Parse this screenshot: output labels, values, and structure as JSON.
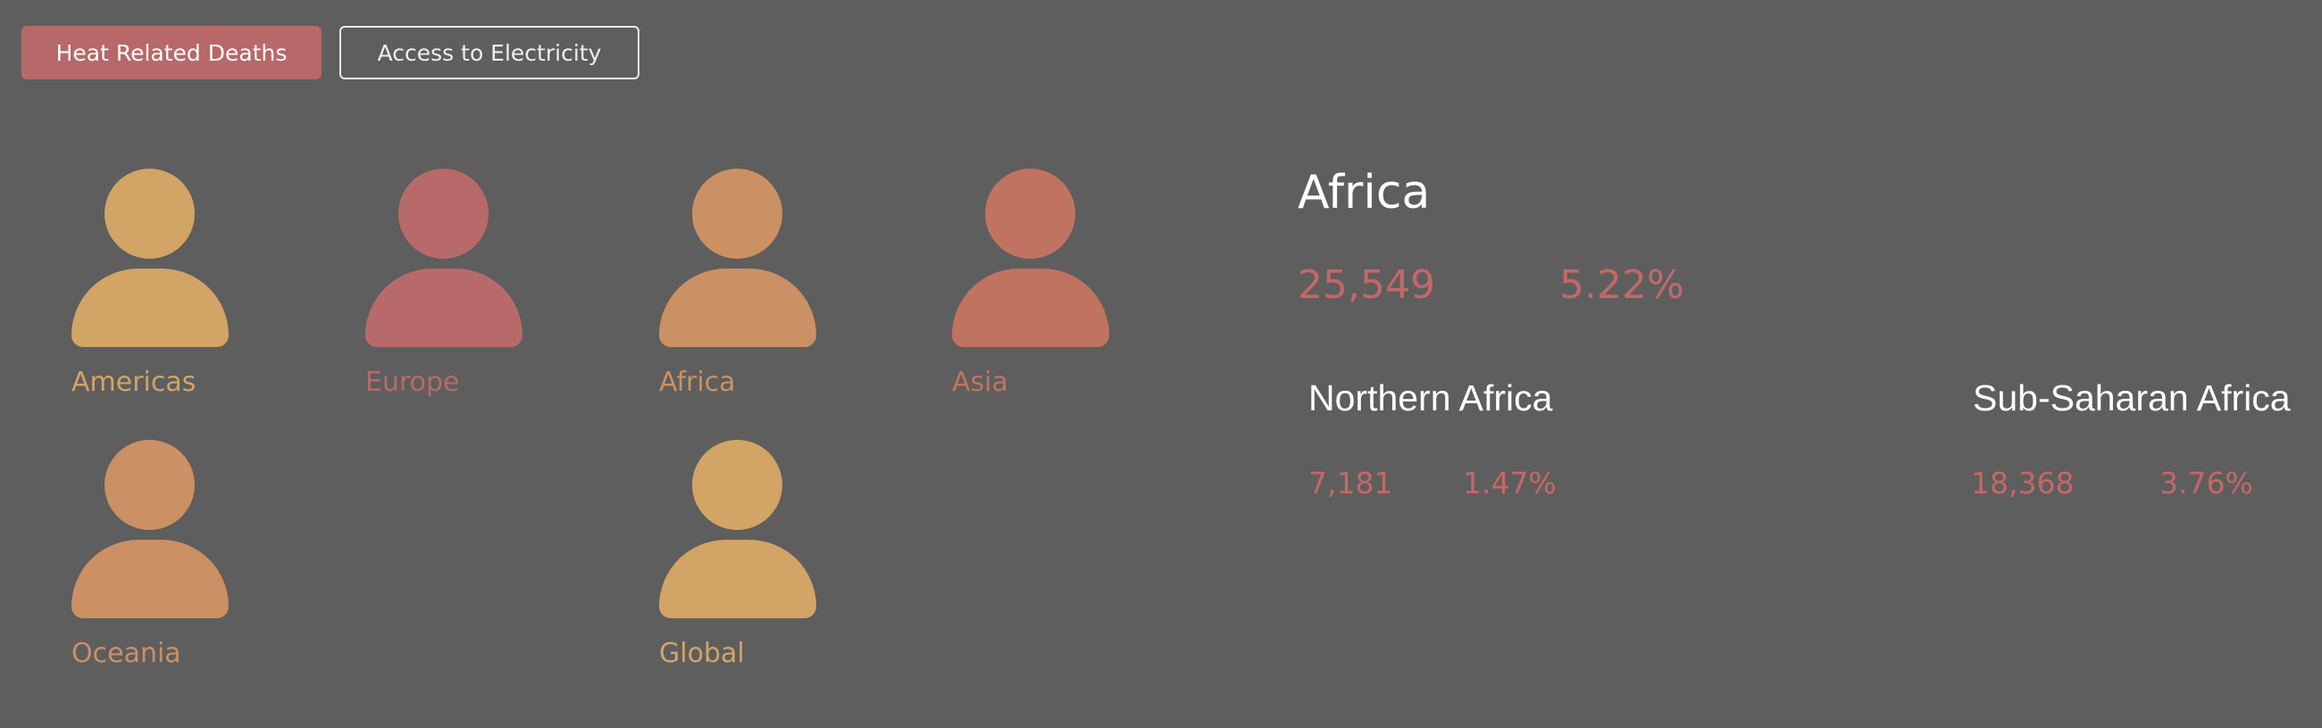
{
  "tabs": [
    {
      "label": "Heat Related Deaths",
      "active": true
    },
    {
      "label": "Access to Electricity",
      "active": false
    }
  ],
  "regions": [
    {
      "label": "Americas",
      "color": "#d2a465",
      "label_color": "#d2a465"
    },
    {
      "label": "Europe",
      "color": "#b76a69",
      "label_color": "#b76a69"
    },
    {
      "label": "Africa",
      "color": "#cb9063",
      "label_color": "#cb9063"
    },
    {
      "label": "Asia",
      "color": "#c17361",
      "label_color": "#c17361"
    },
    {
      "label": "Oceania",
      "color": "#cb9063",
      "label_color": "#cb9063"
    },
    {
      "label": "Global",
      "color": "#d2a465",
      "label_color": "#d2a465"
    }
  ],
  "detail": {
    "title": "Africa",
    "deaths": "25,549",
    "percent": "5.22%",
    "subregions": [
      {
        "name": "Northern Africa",
        "deaths": "7,181",
        "percent": "1.47%"
      },
      {
        "name": "Sub-Saharan Africa",
        "deaths": "18,368",
        "percent": "3.76%"
      }
    ]
  },
  "colors": {
    "background": "#5e5e5e",
    "accent": "#b86868",
    "stat_text": "#c46767"
  },
  "icons": {
    "region_icon": "person-icon"
  }
}
